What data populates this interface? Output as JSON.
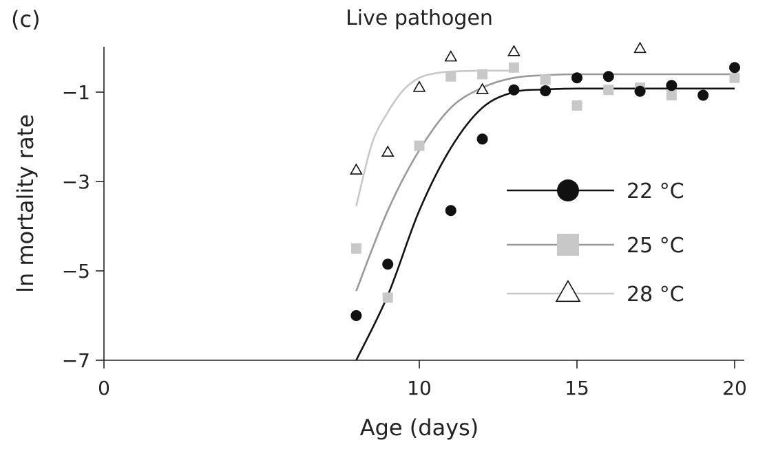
{
  "panel_label": "(c)",
  "chart_data": {
    "type": "scatter",
    "title": "Live pathogen",
    "xlabel": "Age (days)",
    "ylabel": "ln mortality rate",
    "xlim": [
      0,
      20
    ],
    "ylim": [
      -7,
      0
    ],
    "x_ticks": [
      0,
      10,
      15,
      20
    ],
    "y_ticks": [
      -1,
      -3,
      -5,
      -7
    ],
    "x_tick_labels": [
      "0",
      "10",
      "15",
      "20"
    ],
    "y_tick_labels": [
      "−1",
      "−3",
      "−5",
      "−7"
    ],
    "legend_position": "right",
    "series": [
      {
        "name": "22 °C",
        "marker": "circle",
        "color": "#111111",
        "line_color": "#111111",
        "points": [
          [
            8,
            -6.0
          ],
          [
            9,
            -4.85
          ],
          [
            11,
            -3.65
          ],
          [
            12,
            -2.05
          ],
          [
            13,
            -0.95
          ],
          [
            14,
            -0.97
          ],
          [
            15,
            -0.68
          ],
          [
            16,
            -0.65
          ],
          [
            17,
            -0.98
          ],
          [
            18,
            -0.85
          ],
          [
            19,
            -1.07
          ],
          [
            20,
            -0.45
          ]
        ],
        "fit": [
          [
            8,
            -7.0
          ],
          [
            9,
            -5.55
          ],
          [
            10,
            -3.65
          ],
          [
            11,
            -2.25
          ],
          [
            12,
            -1.35
          ],
          [
            13,
            -1.0
          ],
          [
            14,
            -0.94
          ],
          [
            15,
            -0.92
          ],
          [
            17,
            -0.92
          ],
          [
            20,
            -0.92
          ]
        ]
      },
      {
        "name": "25 °C",
        "marker": "square",
        "color": "#c8c8c8",
        "line_color": "#999999",
        "points": [
          [
            8,
            -4.5
          ],
          [
            9,
            -5.6
          ],
          [
            10,
            -2.2
          ],
          [
            11,
            -0.65
          ],
          [
            12,
            -0.6
          ],
          [
            13,
            -0.45
          ],
          [
            14,
            -0.72
          ],
          [
            15,
            -1.3
          ],
          [
            16,
            -0.95
          ],
          [
            17,
            -0.9
          ],
          [
            18,
            -1.07
          ],
          [
            20,
            -0.68
          ]
        ],
        "fit": [
          [
            8,
            -5.45
          ],
          [
            9,
            -3.65
          ],
          [
            10,
            -2.3
          ],
          [
            11,
            -1.35
          ],
          [
            12,
            -0.9
          ],
          [
            13,
            -0.68
          ],
          [
            14,
            -0.62
          ],
          [
            15,
            -0.6
          ],
          [
            17,
            -0.6
          ],
          [
            20,
            -0.6
          ]
        ]
      },
      {
        "name": "28 °C",
        "marker": "triangle",
        "color": "#ffffff",
        "line_color": "#c8c8c8",
        "points": [
          [
            8,
            -2.75
          ],
          [
            9,
            -2.35
          ],
          [
            10,
            -0.9
          ],
          [
            11,
            -0.22
          ],
          [
            12,
            -0.95
          ],
          [
            13,
            -0.1
          ],
          [
            17,
            -0.03
          ]
        ],
        "fit": [
          [
            8,
            -3.55
          ],
          [
            8.5,
            -2.15
          ],
          [
            9,
            -1.45
          ],
          [
            9.5,
            -0.95
          ],
          [
            10,
            -0.68
          ],
          [
            10.5,
            -0.58
          ],
          [
            11,
            -0.54
          ],
          [
            12,
            -0.52
          ],
          [
            13,
            -0.52
          ]
        ]
      }
    ]
  }
}
